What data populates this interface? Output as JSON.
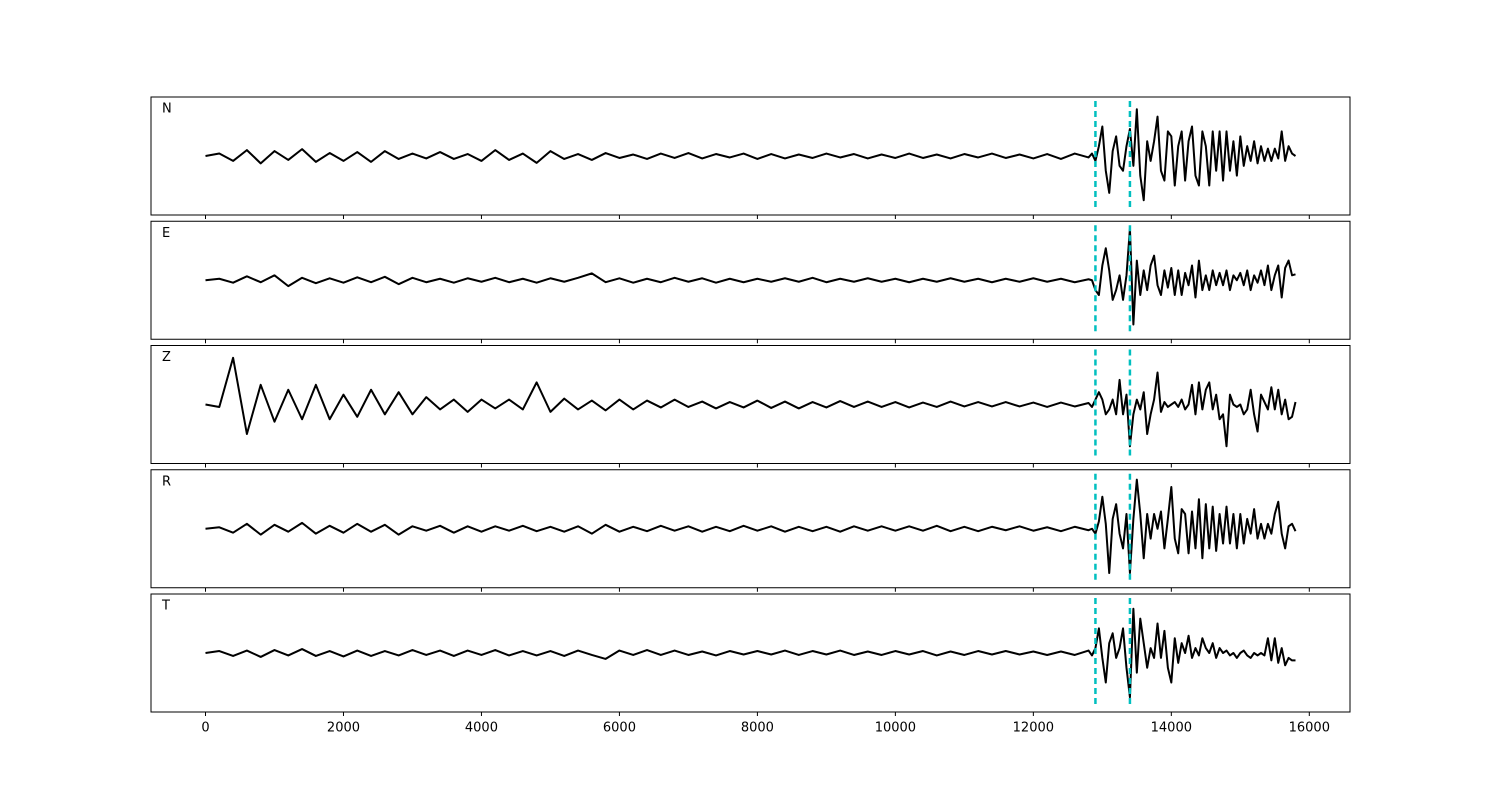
{
  "chart_data": {
    "type": "line",
    "x": [
      0,
      200,
      400,
      600,
      800,
      1000,
      1200,
      1400,
      1600,
      1800,
      2000,
      2200,
      2400,
      2600,
      2800,
      3000,
      3200,
      3400,
      3600,
      3800,
      4000,
      4200,
      4400,
      4600,
      4800,
      5000,
      5200,
      5400,
      5600,
      5800,
      6000,
      6200,
      6400,
      6600,
      6800,
      7000,
      7200,
      7400,
      7600,
      7800,
      8000,
      8200,
      8400,
      8600,
      8800,
      9000,
      9200,
      9400,
      9600,
      9800,
      10000,
      10200,
      10400,
      10600,
      10800,
      11000,
      11200,
      11400,
      11600,
      11800,
      12000,
      12200,
      12400,
      12600,
      12800,
      12850,
      12900,
      12950,
      13000,
      13050,
      13100,
      13150,
      13200,
      13250,
      13300,
      13350,
      13400,
      13450,
      13500,
      13550,
      13600,
      13650,
      13700,
      13750,
      13800,
      13850,
      13900,
      13950,
      14000,
      14050,
      14100,
      14150,
      14200,
      14250,
      14300,
      14350,
      14400,
      14450,
      14500,
      14550,
      14600,
      14650,
      14700,
      14750,
      14800,
      14850,
      14900,
      14950,
      15000,
      15050,
      15100,
      15150,
      15200,
      15250,
      15300,
      15350,
      15400,
      15450,
      15500,
      15550,
      15600,
      15650,
      15700,
      15750,
      15800
    ],
    "xlim": [
      -790,
      16590
    ],
    "xticks": [
      0,
      2000,
      4000,
      6000,
      8000,
      10000,
      12000,
      14000,
      16000
    ],
    "ylim": [
      -1.2,
      1.2
    ],
    "vlines": [
      12900,
      13400
    ],
    "vline_color": "#00bfbf",
    "series": [
      {
        "name": "N",
        "color": "#000000",
        "values": [
          0,
          0.05,
          -0.1,
          0.12,
          -0.15,
          0.1,
          -0.08,
          0.14,
          -0.12,
          0.06,
          -0.1,
          0.08,
          -0.12,
          0.1,
          -0.06,
          0.05,
          -0.05,
          0.08,
          -0.06,
          0.04,
          -0.1,
          0.12,
          -0.08,
          0.05,
          -0.14,
          0.1,
          -0.06,
          0.04,
          -0.08,
          0.06,
          -0.04,
          0.03,
          -0.06,
          0.05,
          -0.04,
          0.06,
          -0.05,
          0.04,
          -0.03,
          0.05,
          -0.06,
          0.04,
          -0.05,
          0.03,
          -0.04,
          0.05,
          -0.03,
          0.04,
          -0.05,
          0.03,
          -0.04,
          0.05,
          -0.04,
          0.03,
          -0.05,
          0.04,
          -0.03,
          0.05,
          -0.04,
          0.03,
          -0.05,
          0.04,
          -0.06,
          0.05,
          -0.03,
          0.05,
          -0.1,
          0.2,
          0.6,
          -0.3,
          -0.75,
          0.1,
          0.4,
          -0.2,
          -0.3,
          0.2,
          0.55,
          -0.2,
          0.95,
          -0.4,
          -0.9,
          0.3,
          -0.1,
          0.3,
          0.8,
          -0.3,
          -0.5,
          0.5,
          0.4,
          -0.6,
          0.2,
          0.5,
          -0.5,
          0.3,
          0.6,
          -0.4,
          -0.6,
          0.5,
          0.2,
          -0.6,
          0.5,
          -0.3,
          0.5,
          -0.5,
          0.5,
          -0.3,
          0.3,
          -0.4,
          0.4,
          -0.2,
          0.2,
          -0.1,
          0.3,
          -0.15,
          0.2,
          -0.1,
          0.15,
          -0.1,
          0.15,
          -0.05,
          0.5,
          -0.1,
          0.2,
          0.05,
          0
        ]
      },
      {
        "name": "E",
        "color": "#000000",
        "values": [
          0,
          0.03,
          -0.05,
          0.08,
          -0.04,
          0.1,
          -0.12,
          0.05,
          -0.06,
          0.04,
          -0.05,
          0.06,
          -0.04,
          0.07,
          -0.08,
          0.05,
          -0.04,
          0.03,
          -0.05,
          0.04,
          -0.03,
          0.05,
          -0.04,
          0.03,
          -0.05,
          0.04,
          -0.03,
          0.05,
          0.14,
          -0.04,
          0.04,
          -0.05,
          0.03,
          -0.04,
          0.05,
          -0.03,
          0.04,
          -0.05,
          0.03,
          -0.04,
          0.03,
          -0.03,
          0.04,
          -0.03,
          0.05,
          -0.04,
          0.03,
          -0.03,
          0.04,
          -0.03,
          0.03,
          -0.04,
          0.03,
          -0.03,
          0.04,
          -0.03,
          0.03,
          -0.04,
          0.03,
          -0.03,
          0.04,
          -0.03,
          0.03,
          -0.04,
          0.02,
          0,
          -0.2,
          -0.3,
          0.3,
          0.65,
          0.2,
          -0.4,
          -0.2,
          0.1,
          -0.4,
          0.1,
          1.05,
          -0.9,
          0.4,
          -0.3,
          0.2,
          -0.2,
          0.3,
          0.5,
          -0.1,
          -0.3,
          0.2,
          -0.15,
          0.25,
          -0.3,
          0.2,
          -0.3,
          0.15,
          -0.1,
          0.3,
          -0.35,
          0.4,
          -0.2,
          0.1,
          -0.2,
          0.2,
          -0.1,
          0.15,
          -0.1,
          0.2,
          -0.2,
          0.1,
          0,
          0.15,
          -0.1,
          0.2,
          -0.2,
          0.1,
          -0.05,
          0.2,
          -0.1,
          0.3,
          -0.2,
          0.1,
          0.3,
          -0.35,
          0.25,
          0.4,
          0.1,
          0.12
        ]
      },
      {
        "name": "Z",
        "color": "#000000",
        "values": [
          0,
          -0.05,
          0.95,
          -0.6,
          0.4,
          -0.35,
          0.3,
          -0.3,
          0.4,
          -0.3,
          0.2,
          -0.25,
          0.3,
          -0.2,
          0.25,
          -0.2,
          0.15,
          -0.1,
          0.1,
          -0.15,
          0.1,
          -0.08,
          0.1,
          -0.1,
          0.45,
          -0.15,
          0.12,
          -0.1,
          0.08,
          -0.12,
          0.1,
          -0.1,
          0.08,
          -0.06,
          0.1,
          -0.05,
          0.06,
          -0.08,
          0.05,
          -0.06,
          0.08,
          -0.07,
          0.06,
          -0.08,
          0.05,
          -0.06,
          0.07,
          -0.05,
          0.06,
          -0.05,
          0.05,
          -0.06,
          0.04,
          -0.05,
          0.06,
          -0.04,
          0.05,
          -0.04,
          0.05,
          -0.04,
          0.04,
          -0.05,
          0.04,
          -0.04,
          0.03,
          -0.05,
          0.1,
          0.25,
          0.1,
          -0.2,
          -0.1,
          0.1,
          -0.2,
          0.5,
          -0.2,
          0.2,
          -0.85,
          -0.2,
          0.1,
          -0.1,
          0.25,
          -0.6,
          -0.2,
          0.1,
          0.65,
          -0.15,
          0.05,
          -0.05,
          0,
          0.05,
          -0.05,
          0.1,
          -0.1,
          0,
          0.4,
          -0.2,
          0.45,
          -0.1,
          0.3,
          0.45,
          -0.1,
          0.2,
          -0.3,
          -0.2,
          -0.85,
          0.2,
          0,
          -0.05,
          0,
          -0.2,
          -0.1,
          0.3,
          -0.2,
          -0.55,
          0.2,
          0.05,
          -0.1,
          0.35,
          -0.1,
          0.3,
          -0.2,
          0.1,
          -0.3,
          -0.25,
          0.05
        ]
      },
      {
        "name": "R",
        "color": "#000000",
        "values": [
          0,
          0.03,
          -0.08,
          0.1,
          -0.12,
          0.08,
          -0.06,
          0.12,
          -0.1,
          0.06,
          -0.08,
          0.1,
          -0.06,
          0.08,
          -0.12,
          0.05,
          -0.04,
          0.06,
          -0.08,
          0.05,
          -0.06,
          0.05,
          -0.04,
          0.06,
          -0.05,
          0.04,
          -0.06,
          0.05,
          -0.1,
          0.08,
          -0.06,
          0.04,
          -0.05,
          0.06,
          -0.04,
          0.05,
          -0.06,
          0.04,
          -0.05,
          0.06,
          -0.04,
          0.05,
          -0.06,
          0.04,
          -0.05,
          0.04,
          -0.06,
          0.05,
          -0.04,
          0.05,
          -0.04,
          0.05,
          -0.04,
          0.06,
          -0.05,
          0.04,
          -0.05,
          0.04,
          -0.03,
          0.05,
          -0.04,
          0.03,
          -0.05,
          0.04,
          -0.03,
          0,
          -0.1,
          0.15,
          0.65,
          0.1,
          -0.9,
          0.2,
          0.5,
          -0.1,
          -0.4,
          0.3,
          -0.9,
          0.2,
          1.0,
          0.3,
          -0.6,
          0.3,
          -0.2,
          0.3,
          0,
          0.35,
          -0.4,
          0.2,
          0.85,
          -0.2,
          -0.5,
          0.4,
          0.3,
          -0.5,
          0.35,
          -0.4,
          0.6,
          -0.6,
          0.5,
          -0.4,
          0.45,
          -0.45,
          0.3,
          -0.3,
          0.45,
          -0.3,
          0.3,
          -0.4,
          0.3,
          -0.3,
          0.2,
          -0.1,
          0.4,
          -0.2,
          0.1,
          -0.2,
          0.1,
          -0.1,
          0.3,
          0.55,
          -0.1,
          -0.4,
          0.05,
          0.1,
          -0.05
        ]
      },
      {
        "name": "T",
        "color": "#000000",
        "values": [
          0,
          0.04,
          -0.06,
          0.05,
          -0.08,
          0.06,
          -0.05,
          0.08,
          -0.06,
          0.04,
          -0.07,
          0.05,
          -0.06,
          0.04,
          -0.05,
          0.06,
          -0.04,
          0.05,
          -0.06,
          0.05,
          -0.04,
          0.06,
          -0.05,
          0.04,
          -0.05,
          0.04,
          -0.06,
          0.05,
          -0.04,
          -0.12,
          0.05,
          -0.04,
          0.06,
          -0.04,
          0.05,
          -0.04,
          0.03,
          -0.05,
          0.04,
          -0.03,
          0.04,
          -0.03,
          0.05,
          -0.04,
          0.04,
          -0.03,
          0.05,
          -0.04,
          0.03,
          -0.04,
          0.04,
          -0.03,
          0.04,
          -0.05,
          0.03,
          -0.04,
          0.04,
          -0.03,
          0.04,
          -0.03,
          0.03,
          -0.04,
          0.03,
          -0.04,
          0.05,
          -0.05,
          0.1,
          0.5,
          -0.1,
          -0.6,
          0.2,
          0.4,
          -0.1,
          0.1,
          0.5,
          -0.3,
          -0.9,
          0.9,
          -0.4,
          0.7,
          0.2,
          -0.3,
          0.1,
          -0.1,
          0.6,
          -0.1,
          0.45,
          -0.3,
          -0.6,
          0.3,
          -0.2,
          0.2,
          0,
          0.35,
          -0.1,
          0.1,
          -0.05,
          0.3,
          0.1,
          0,
          0.2,
          -0.1,
          0.1,
          0,
          0.05,
          -0.05,
          0,
          -0.1,
          0,
          0.05,
          -0.05,
          -0.1,
          0,
          -0.05,
          0,
          -0.05,
          0.3,
          -0.15,
          0.3,
          -0.2,
          0.1,
          -0.25,
          -0.1,
          -0.15,
          -0.15
        ]
      }
    ]
  }
}
